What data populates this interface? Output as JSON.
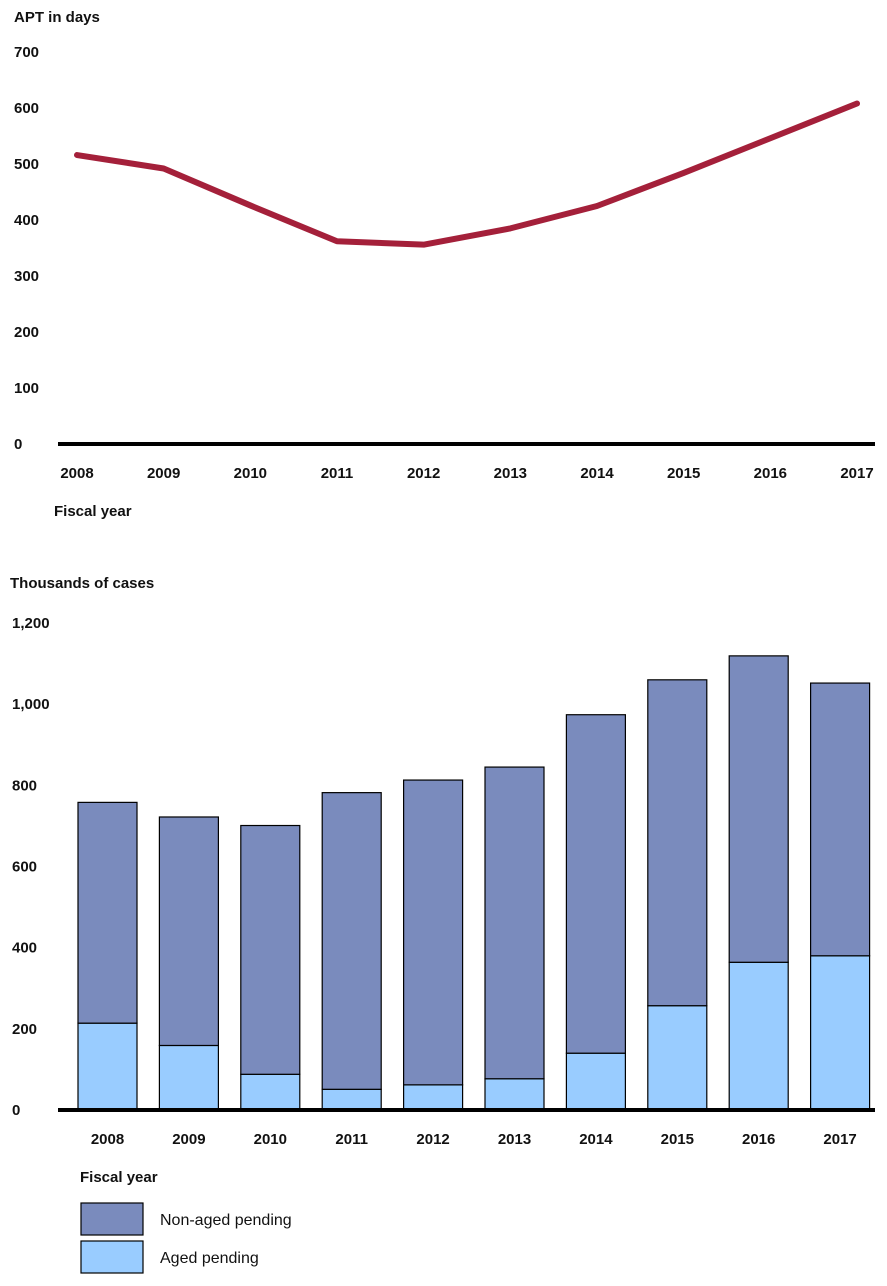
{
  "chart_data": [
    {
      "type": "line",
      "title": "",
      "ylabel": "APT in days",
      "xlabel": "Fiscal year",
      "ylim": [
        0,
        700
      ],
      "yticks": [
        "0",
        "100",
        "200",
        "300",
        "400",
        "500",
        "600",
        "700"
      ],
      "categories": [
        "2008",
        "2009",
        "2010",
        "2011",
        "2012",
        "2013",
        "2014",
        "2015",
        "2016",
        "2017"
      ],
      "values": [
        516,
        492,
        426,
        362,
        356,
        385,
        425,
        484,
        546,
        608
      ],
      "color": "#a4203a",
      "grid": false
    },
    {
      "type": "bar",
      "stacked": true,
      "title": "",
      "ylabel": "Thousands of cases",
      "xlabel": "Fiscal year",
      "ylim": [
        0,
        1200
      ],
      "yticks": [
        "0",
        "200",
        "400",
        "600",
        "800",
        "1,000",
        "1,200"
      ],
      "categories": [
        "2008",
        "2009",
        "2010",
        "2011",
        "2012",
        "2013",
        "2014",
        "2015",
        "2016",
        "2017"
      ],
      "series": [
        {
          "name": "Aged pending",
          "color": "#99ccff",
          "values": [
            214,
            159,
            88,
            51,
            62,
            77,
            140,
            257,
            364,
            380
          ]
        },
        {
          "name": "Non-aged pending",
          "color": "#7a8bbd",
          "values": [
            544,
            563,
            613,
            731,
            751,
            768,
            834,
            803,
            755,
            672
          ]
        }
      ],
      "legend": [
        {
          "name": "Non-aged pending",
          "color": "#7a8bbd"
        },
        {
          "name": "Aged pending",
          "color": "#99ccff"
        }
      ],
      "legend_position": "bottom-left",
      "grid": false
    }
  ]
}
